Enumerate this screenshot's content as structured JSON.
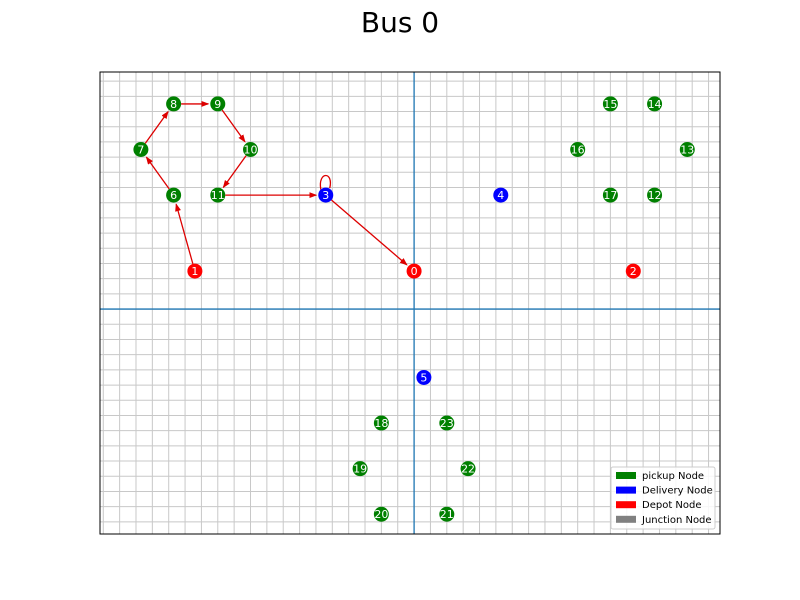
{
  "chart_data": {
    "type": "scatter",
    "title": "Bus 0",
    "xlim": [
      -9.6,
      9.35
    ],
    "ylim": [
      -7.4,
      7.8
    ],
    "grid": true,
    "legend_placement": "lower-right",
    "colors": {
      "pickup": "#008000",
      "delivery": "#0000ff",
      "depot": "#ff0000",
      "junction": "#808080",
      "route": "#dd0000",
      "axis_line": "#1f77b4"
    },
    "legend": [
      {
        "label": "pickup Node",
        "type": "pickup"
      },
      {
        "label": "Delivery Node",
        "type": "delivery"
      },
      {
        "label": "Depot Node",
        "type": "depot"
      },
      {
        "label": "Junction Node",
        "type": "junction"
      }
    ],
    "nodes": [
      {
        "id": "0",
        "x": 0.0,
        "y": 1.25,
        "type": "depot"
      },
      {
        "id": "1",
        "x": -6.7,
        "y": 1.25,
        "type": "depot"
      },
      {
        "id": "2",
        "x": 6.7,
        "y": 1.25,
        "type": "depot"
      },
      {
        "id": "3",
        "x": -2.7,
        "y": 3.75,
        "type": "delivery"
      },
      {
        "id": "4",
        "x": 2.65,
        "y": 3.75,
        "type": "delivery"
      },
      {
        "id": "5",
        "x": 0.3,
        "y": -2.25,
        "type": "delivery"
      },
      {
        "id": "6",
        "x": -7.35,
        "y": 3.75,
        "type": "pickup"
      },
      {
        "id": "7",
        "x": -8.35,
        "y": 5.25,
        "type": "pickup"
      },
      {
        "id": "8",
        "x": -7.35,
        "y": 6.75,
        "type": "pickup"
      },
      {
        "id": "9",
        "x": -6.0,
        "y": 6.75,
        "type": "pickup"
      },
      {
        "id": "10",
        "x": -5.0,
        "y": 5.25,
        "type": "pickup"
      },
      {
        "id": "11",
        "x": -6.0,
        "y": 3.75,
        "type": "pickup"
      },
      {
        "id": "12",
        "x": 7.35,
        "y": 3.75,
        "type": "pickup"
      },
      {
        "id": "13",
        "x": 8.35,
        "y": 5.25,
        "type": "pickup"
      },
      {
        "id": "14",
        "x": 7.35,
        "y": 6.75,
        "type": "pickup"
      },
      {
        "id": "15",
        "x": 6.0,
        "y": 6.75,
        "type": "pickup"
      },
      {
        "id": "16",
        "x": 5.0,
        "y": 5.25,
        "type": "pickup"
      },
      {
        "id": "17",
        "x": 6.0,
        "y": 3.75,
        "type": "pickup"
      },
      {
        "id": "18",
        "x": -1.0,
        "y": -3.75,
        "type": "pickup"
      },
      {
        "id": "19",
        "x": -1.65,
        "y": -5.25,
        "type": "pickup"
      },
      {
        "id": "20",
        "x": -1.0,
        "y": -6.75,
        "type": "pickup"
      },
      {
        "id": "21",
        "x": 1.0,
        "y": -6.75,
        "type": "pickup"
      },
      {
        "id": "22",
        "x": 1.65,
        "y": -5.25,
        "type": "pickup"
      },
      {
        "id": "23",
        "x": 1.0,
        "y": -3.75,
        "type": "pickup"
      }
    ],
    "route": [
      "1",
      "6",
      "7",
      "8",
      "9",
      "10",
      "11",
      "3",
      "3",
      "0"
    ]
  }
}
